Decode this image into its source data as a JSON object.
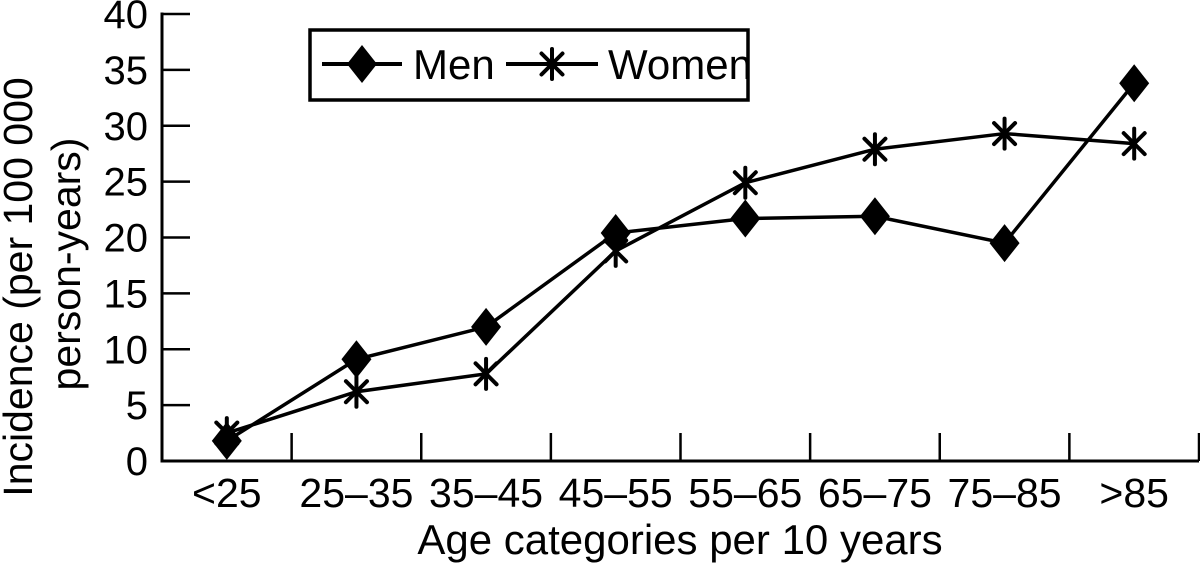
{
  "chart_data": {
    "type": "line",
    "title": "",
    "xlabel": "Age categories per 10 years",
    "ylabel_lines": [
      "Incidence (per 100 000",
      "person-years)"
    ],
    "categories": [
      "<25",
      "25–35",
      "35–45",
      "45–55",
      "55–65",
      "65–75",
      "75–85",
      ">85"
    ],
    "series": [
      {
        "name": "Men",
        "marker": "diamond",
        "values": [
          1.8,
          9.1,
          12.0,
          20.4,
          21.7,
          21.9,
          19.5,
          33.8
        ]
      },
      {
        "name": "Women",
        "marker": "asterisk",
        "values": [
          2.5,
          6.2,
          7.8,
          18.8,
          24.9,
          27.9,
          29.3,
          28.4
        ]
      }
    ],
    "ylim": [
      0,
      40
    ],
    "yticks": [
      0,
      5,
      10,
      15,
      20,
      25,
      30,
      35,
      40
    ],
    "grid": false,
    "legend_position": "top",
    "line_color": "#000000",
    "background": "#ffffff"
  }
}
